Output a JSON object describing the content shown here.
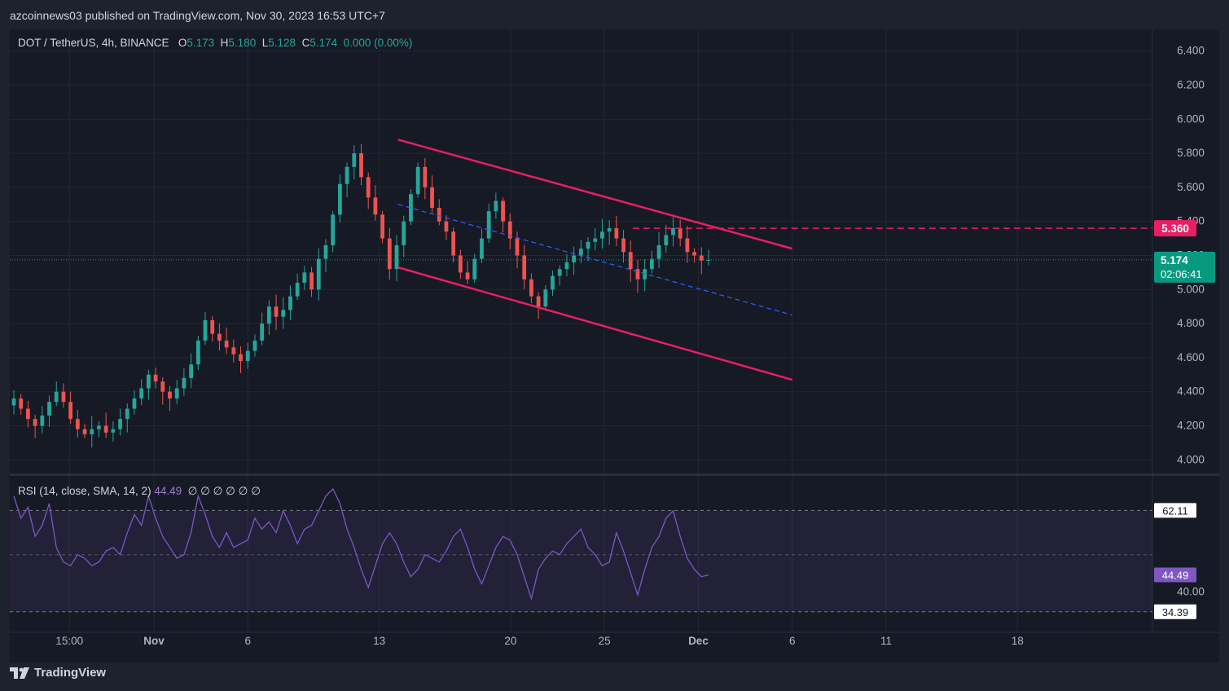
{
  "header": {
    "publisher_text": "azcoinnews03 published on TradingView.com, Nov 30, 2023 16:53 UTC+7"
  },
  "legend": {
    "symbol": "DOT / TetherUS, 4h, BINANCE",
    "open_label": "O",
    "open": "5.173",
    "high_label": "H",
    "high": "5.180",
    "low_label": "L",
    "low": "5.128",
    "close_label": "C",
    "close": "5.174",
    "change": "0.000 (0.00%)"
  },
  "rsi_legend": {
    "title": "RSI (14, close, SMA, 14, 2)",
    "value": "44.49",
    "placeholders": "∅ ∅ ∅ ∅ ∅ ∅"
  },
  "footer": {
    "brand": "TradingView"
  },
  "colors": {
    "up": "#26a69a",
    "down": "#ef5350",
    "channel": "#e91e63",
    "midline": "#2962ff",
    "rsi": "#7e57c2",
    "last_price": "#089981",
    "background": "#161a25",
    "page": "#1e222d"
  },
  "chart_data": [
    {
      "type": "candlestick",
      "title": "DOT / TetherUS, 4h, BINANCE",
      "ylim": [
        3.92,
        6.48
      ],
      "y_ticks": [
        "6.400",
        "6.200",
        "6.000",
        "5.800",
        "5.600",
        "5.400",
        "5.200",
        "5.000",
        "4.800",
        "4.600",
        "4.400",
        "4.200",
        "4.000"
      ],
      "x_ticks": [
        "15:00",
        "Nov",
        "6",
        "13",
        "20",
        "25",
        "Dec",
        "6",
        "11",
        "18"
      ],
      "close_series": [
        4.36,
        4.3,
        4.24,
        4.2,
        4.26,
        4.34,
        4.4,
        4.34,
        4.24,
        4.18,
        4.15,
        4.18,
        4.2,
        4.16,
        4.18,
        4.24,
        4.3,
        4.36,
        4.42,
        4.5,
        4.46,
        4.4,
        4.36,
        4.42,
        4.48,
        4.56,
        4.7,
        4.82,
        4.74,
        4.7,
        4.66,
        4.62,
        4.58,
        4.64,
        4.7,
        4.8,
        4.9,
        4.84,
        4.88,
        4.96,
        5.04,
        5.1,
        5.0,
        5.18,
        5.26,
        5.44,
        5.62,
        5.72,
        5.8,
        5.66,
        5.54,
        5.44,
        5.3,
        5.12,
        5.26,
        5.4,
        5.56,
        5.72,
        5.6,
        5.48,
        5.4,
        5.34,
        5.2,
        5.1,
        5.06,
        5.18,
        5.3,
        5.46,
        5.52,
        5.4,
        5.3,
        5.2,
        5.06,
        4.96,
        4.9,
        5.0,
        5.08,
        5.12,
        5.16,
        5.2,
        5.24,
        5.28,
        5.3,
        5.34,
        5.36,
        5.3,
        5.22,
        5.12,
        5.06,
        5.12,
        5.18,
        5.26,
        5.32,
        5.36,
        5.3,
        5.22,
        5.2,
        5.17,
        5.174
      ],
      "annotations": {
        "last_price_label": "5.174",
        "countdown": "02:06:41",
        "level_label": "5.360",
        "level": 5.36,
        "channel_upper": [
          [
            13,
            5.88
          ],
          [
            34,
            5.24
          ]
        ],
        "channel_lower": [
          [
            13,
            5.13
          ],
          [
            34,
            4.47
          ]
        ],
        "channel_mid": [
          [
            13,
            5.5
          ],
          [
            34,
            4.85
          ]
        ]
      }
    },
    {
      "type": "line",
      "title": "RSI (14, close, SMA, 14, 2)",
      "ylim": [
        31,
        70
      ],
      "y_ticks": [
        "62.11",
        "40.00"
      ],
      "bands": [
        34.39,
        62.11
      ],
      "midline": 50,
      "last_value_label": "44.49",
      "band_labels": [
        "62.11",
        "34.39"
      ],
      "series": [
        {
          "values": [
            66,
            60,
            63,
            55,
            58,
            64,
            52,
            48,
            47,
            50,
            49,
            47,
            48,
            51,
            52,
            50,
            56,
            61,
            58,
            66,
            60,
            55,
            52,
            49,
            50,
            56,
            66,
            61,
            55,
            52,
            56,
            52,
            53,
            54,
            60,
            57,
            59,
            56,
            62,
            58,
            53,
            57,
            58,
            62,
            66,
            68,
            64,
            57,
            52,
            46,
            41,
            47,
            53,
            56,
            53,
            48,
            44,
            46,
            50,
            49,
            48,
            51,
            55,
            57,
            52,
            46,
            42,
            47,
            52,
            55,
            54,
            50,
            44,
            38,
            46,
            49,
            51,
            50,
            53,
            55,
            57,
            52,
            50,
            47,
            48,
            56,
            51,
            45,
            39,
            46,
            52,
            55,
            60,
            62,
            55,
            49,
            46,
            44,
            44.49
          ]
        }
      ]
    }
  ]
}
